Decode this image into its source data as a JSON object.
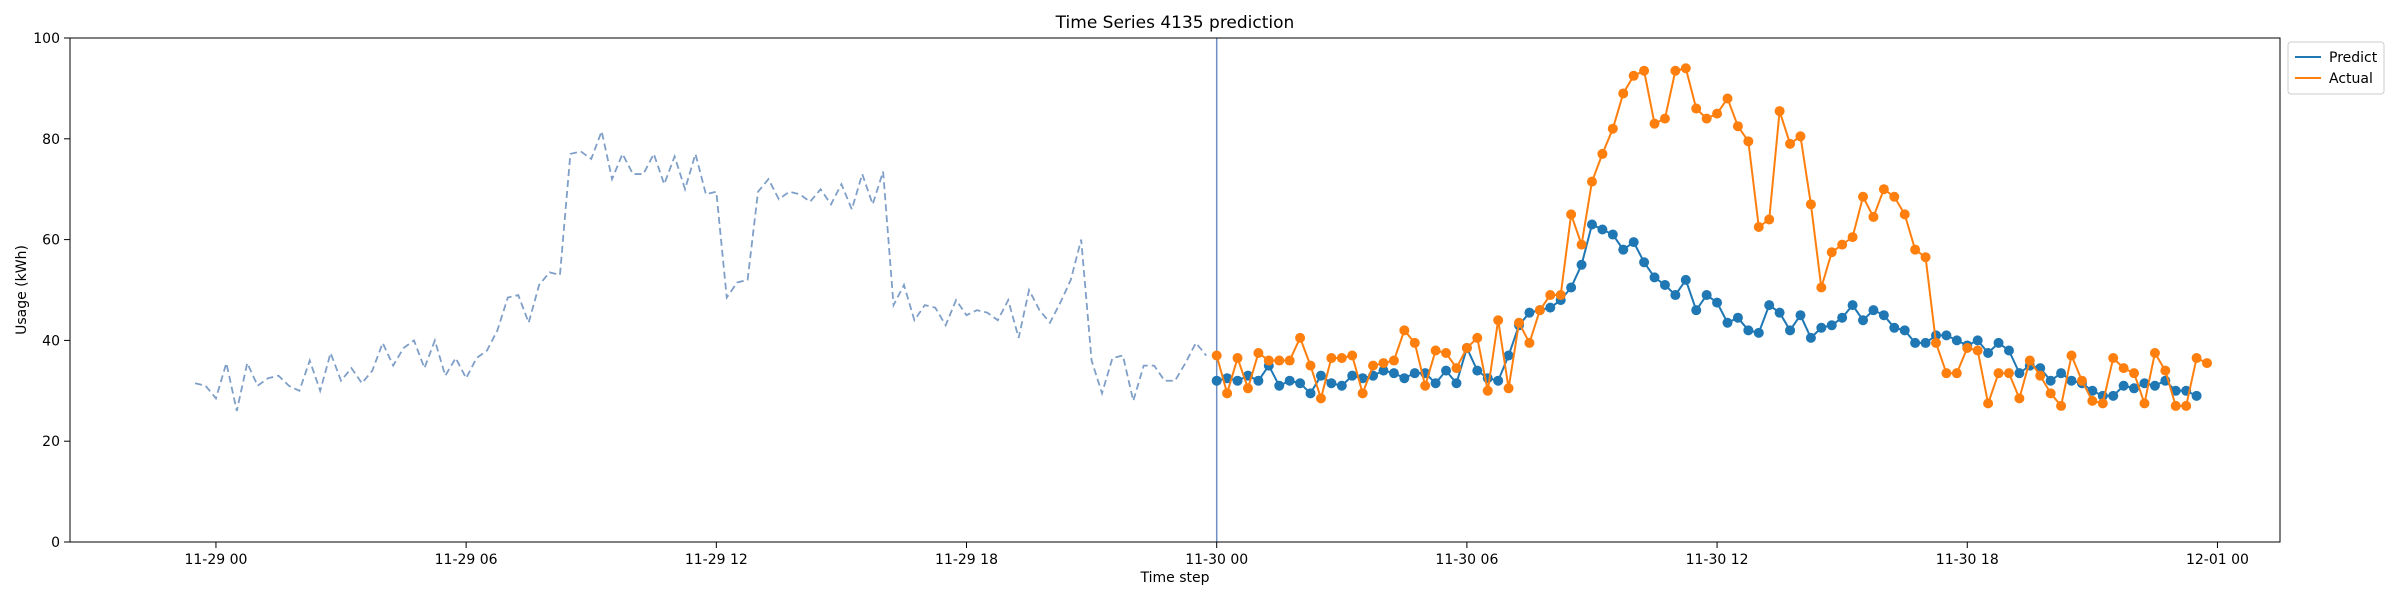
{
  "chart_data": {
    "type": "line",
    "title": "Time Series 4135 prediction",
    "xlabel": "Time step",
    "ylabel": "Usage (kWh)",
    "ylim": [
      0,
      100
    ],
    "xlim_hours": [
      -3.5,
      49.5
    ],
    "yticks": [
      0,
      20,
      40,
      60,
      80,
      100
    ],
    "xticks": [
      {
        "hour": 0,
        "label": "11-29 00"
      },
      {
        "hour": 6,
        "label": "11-29 06"
      },
      {
        "hour": 12,
        "label": "11-29 12"
      },
      {
        "hour": 18,
        "label": "11-29 18"
      },
      {
        "hour": 24,
        "label": "11-30 00"
      },
      {
        "hour": 30,
        "label": "11-30 06"
      },
      {
        "hour": 36,
        "label": "11-30 12"
      },
      {
        "hour": 42,
        "label": "11-30 18"
      },
      {
        "hour": 48,
        "label": "12-01 00"
      }
    ],
    "step_hours": 0.25,
    "forecast_start_hour": 24,
    "legend_position": "upper-right-outside",
    "series": [
      {
        "name": "History",
        "legend": false,
        "color": "#7f9fc8",
        "style": "dashed",
        "start_hour": -0.5,
        "values": [
          31.5,
          31,
          28.5,
          35.5,
          26,
          35.5,
          31,
          32.5,
          33,
          31,
          30,
          36,
          30,
          37.5,
          32,
          34.5,
          31.5,
          34,
          39.5,
          35,
          38.5,
          40,
          34.5,
          40,
          33,
          36.5,
          32.5,
          36.5,
          38,
          42,
          48.5,
          49,
          43.5,
          51,
          53.5,
          53,
          77,
          77.5,
          76,
          81.5,
          72,
          77,
          73,
          73,
          77,
          71,
          76.5,
          70,
          77,
          69,
          69.5,
          48.5,
          51.5,
          52,
          69.5,
          72,
          68,
          69.5,
          69,
          67.5,
          70,
          67,
          71,
          66,
          73,
          67,
          73.5,
          47,
          51,
          44,
          47,
          46.5,
          43,
          48,
          45,
          46,
          45.5,
          44,
          48,
          40.5,
          50,
          46,
          43.5,
          47.5,
          52,
          60,
          36,
          29.5,
          36.5,
          37,
          28,
          35,
          35,
          32,
          32,
          35.5,
          39.5,
          37
        ]
      },
      {
        "name": "Predict",
        "legend": true,
        "color": "#1f77b4",
        "style": "solid-markers",
        "start_hour": 24,
        "values": [
          32,
          32.5,
          32,
          33,
          32,
          35,
          31,
          32,
          31.5,
          29.5,
          33,
          31.5,
          31,
          33,
          32.5,
          33,
          34,
          33.5,
          32.5,
          33.5,
          33.5,
          31.5,
          34,
          31.5,
          38.5,
          34,
          32.5,
          32,
          37,
          43,
          45.5,
          46,
          46.5,
          48,
          50.5,
          55,
          63,
          62,
          61,
          58,
          59.5,
          55.5,
          52.5,
          51,
          49,
          52,
          46,
          49,
          47.5,
          43.5,
          44.5,
          42,
          41.5,
          47,
          45.5,
          42,
          45,
          40.5,
          42.5,
          43,
          44.5,
          47,
          44,
          46,
          45,
          42.5,
          42,
          39.5,
          39.5,
          41,
          41,
          40,
          39,
          40,
          37.5,
          39.5,
          38,
          33.5,
          35,
          34.5,
          32,
          33.5,
          32,
          31.5,
          30,
          29,
          29,
          31,
          30.5,
          31.5,
          31,
          32,
          30,
          30,
          29
        ]
      },
      {
        "name": "Actual",
        "legend": true,
        "color": "#ff7f0e",
        "style": "solid-markers",
        "start_hour": 24,
        "values": [
          37,
          29.5,
          36.5,
          30.5,
          37.5,
          36,
          36,
          36,
          40.5,
          35,
          28.5,
          36.5,
          36.5,
          37,
          29.5,
          35,
          35.5,
          36,
          42,
          39.5,
          31,
          38,
          37.5,
          34.5,
          38.5,
          40.5,
          30,
          44,
          30.5,
          43.5,
          39.5,
          46,
          49,
          49,
          65,
          59,
          71.5,
          77,
          82,
          89,
          92.5,
          93.5,
          83,
          84,
          93.5,
          94,
          86,
          84,
          85,
          88,
          82.5,
          79.5,
          62.5,
          64,
          85.5,
          79,
          80.5,
          67,
          50.5,
          57.5,
          59,
          60.5,
          68.5,
          64.5,
          70,
          68.5,
          65,
          58,
          56.5,
          39.5,
          33.5,
          33.5,
          38.5,
          38,
          27.5,
          33.5,
          33.5,
          28.5,
          36,
          33,
          29.5,
          27,
          37,
          32,
          28,
          27.5,
          36.5,
          34.5,
          33.5,
          27.5,
          37.5,
          34,
          27,
          27,
          36.5,
          35.5
        ]
      }
    ]
  }
}
